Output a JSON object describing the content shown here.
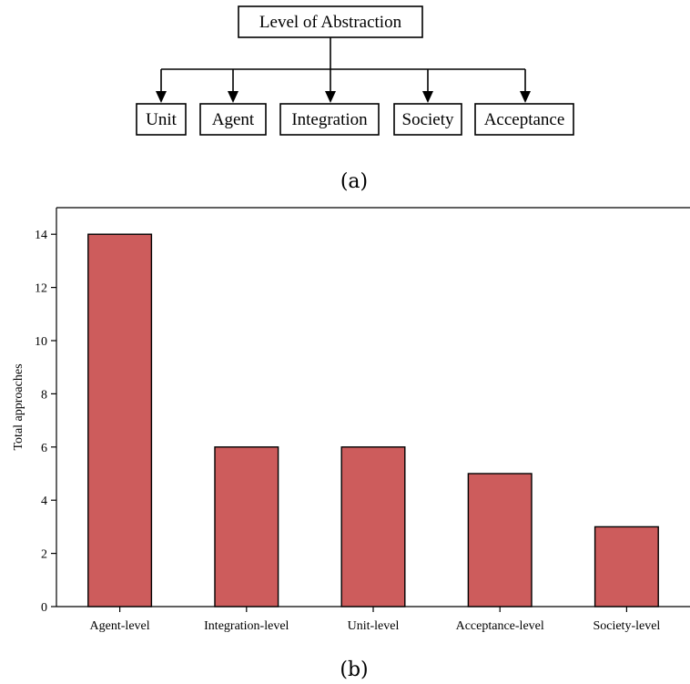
{
  "diagram": {
    "root": "Level of Abstraction",
    "children": [
      "Unit",
      "Agent",
      "Integration",
      "Society",
      "Acceptance"
    ],
    "caption": "(a)"
  },
  "chart_data": {
    "type": "bar",
    "categories": [
      "Agent-level",
      "Integration-level",
      "Unit-level",
      "Acceptance-level",
      "Society-level"
    ],
    "values": [
      14,
      6,
      6,
      5,
      3
    ],
    "title": "",
    "xlabel": "",
    "ylabel": "Total approaches",
    "ylim": [
      0,
      15
    ],
    "yticks": [
      0,
      2,
      4,
      6,
      8,
      10,
      12,
      14
    ],
    "grid": false,
    "bar_color": "#cd5c5c",
    "caption": "(b)"
  }
}
